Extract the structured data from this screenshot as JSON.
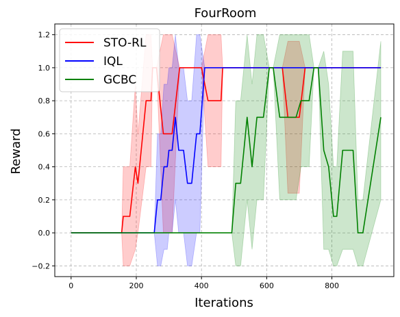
{
  "chart_data": {
    "type": "line",
    "title": "FourRoom",
    "xlabel": "Iterations",
    "ylabel": "Reward",
    "xlim": [
      -50,
      990
    ],
    "ylim": [
      -0.265,
      1.265
    ],
    "xticks": [
      0,
      200,
      400,
      600,
      800
    ],
    "yticks": [
      -0.2,
      0.0,
      0.2,
      0.4,
      0.6,
      0.8,
      1.0,
      1.2
    ],
    "grid": true,
    "legend_position": "upper-left",
    "series": [
      {
        "name": "STO-RL",
        "color": "#ff0000",
        "band_color": "#ff0000",
        "points": [
          {
            "x": 0,
            "y": 0.0,
            "lo": 0.0,
            "hi": 0.0
          },
          {
            "x": 155,
            "y": 0.0,
            "lo": 0.0,
            "hi": 0.0
          },
          {
            "x": 160,
            "y": 0.1,
            "lo": -0.2,
            "hi": 0.4
          },
          {
            "x": 180,
            "y": 0.1,
            "lo": -0.2,
            "hi": 0.4
          },
          {
            "x": 197,
            "y": 0.4,
            "lo": -0.1,
            "hi": 0.9
          },
          {
            "x": 205,
            "y": 0.3,
            "lo": 0.0,
            "hi": 0.6
          },
          {
            "x": 230,
            "y": 0.8,
            "lo": 0.4,
            "hi": 1.2
          },
          {
            "x": 245,
            "y": 0.8,
            "lo": 0.4,
            "hi": 1.2
          },
          {
            "x": 250,
            "y": 1.0,
            "lo": 1.0,
            "hi": 1.0
          },
          {
            "x": 262,
            "y": 1.0,
            "lo": 1.0,
            "hi": 1.0
          },
          {
            "x": 283,
            "y": 0.6,
            "lo": 0.0,
            "hi": 1.2
          },
          {
            "x": 310,
            "y": 0.6,
            "lo": 0.0,
            "hi": 1.2
          },
          {
            "x": 333,
            "y": 1.0,
            "lo": 1.0,
            "hi": 1.0
          },
          {
            "x": 400,
            "y": 1.0,
            "lo": 1.0,
            "hi": 1.0
          },
          {
            "x": 420,
            "y": 0.8,
            "lo": 0.4,
            "hi": 1.2
          },
          {
            "x": 460,
            "y": 0.8,
            "lo": 0.4,
            "hi": 1.2
          },
          {
            "x": 465,
            "y": 1.0,
            "lo": 1.0,
            "hi": 1.0
          },
          {
            "x": 648,
            "y": 1.0,
            "lo": 1.0,
            "hi": 1.0
          },
          {
            "x": 665,
            "y": 0.7,
            "lo": 0.24,
            "hi": 1.16
          },
          {
            "x": 700,
            "y": 0.7,
            "lo": 0.24,
            "hi": 1.16
          },
          {
            "x": 718,
            "y": 1.0,
            "lo": 1.0,
            "hi": 1.0
          },
          {
            "x": 950,
            "y": 1.0,
            "lo": 1.0,
            "hi": 1.0
          }
        ]
      },
      {
        "name": "IQL",
        "color": "#0000ff",
        "band_color": "#0000ff",
        "points": [
          {
            "x": 0,
            "y": 0.0,
            "lo": 0.0,
            "hi": 0.0
          },
          {
            "x": 255,
            "y": 0.0,
            "lo": 0.0,
            "hi": 0.0
          },
          {
            "x": 265,
            "y": 0.2,
            "lo": -0.2,
            "hi": 0.6
          },
          {
            "x": 275,
            "y": 0.2,
            "lo": -0.2,
            "hi": 0.6
          },
          {
            "x": 285,
            "y": 0.4,
            "lo": -0.1,
            "hi": 0.9
          },
          {
            "x": 295,
            "y": 0.4,
            "lo": -0.1,
            "hi": 0.9
          },
          {
            "x": 300,
            "y": 0.5,
            "lo": 0.0,
            "hi": 1.0
          },
          {
            "x": 310,
            "y": 0.5,
            "lo": 0.0,
            "hi": 1.0
          },
          {
            "x": 320,
            "y": 0.7,
            "lo": 0.2,
            "hi": 1.2
          },
          {
            "x": 330,
            "y": 0.5,
            "lo": 0.0,
            "hi": 1.0
          },
          {
            "x": 345,
            "y": 0.5,
            "lo": 0.0,
            "hi": 1.0
          },
          {
            "x": 357,
            "y": 0.3,
            "lo": -0.2,
            "hi": 0.8
          },
          {
            "x": 370,
            "y": 0.3,
            "lo": -0.2,
            "hi": 0.8
          },
          {
            "x": 385,
            "y": 0.6,
            "lo": 0.0,
            "hi": 1.2
          },
          {
            "x": 395,
            "y": 0.6,
            "lo": 0.0,
            "hi": 1.2
          },
          {
            "x": 410,
            "y": 1.0,
            "lo": 1.0,
            "hi": 1.0
          },
          {
            "x": 950,
            "y": 1.0,
            "lo": 1.0,
            "hi": 1.0
          }
        ]
      },
      {
        "name": "GCBC",
        "color": "#008000",
        "band_color": "#008000",
        "points": [
          {
            "x": 0,
            "y": 0.0,
            "lo": 0.0,
            "hi": 0.0
          },
          {
            "x": 493,
            "y": 0.0,
            "lo": 0.0,
            "hi": 0.0
          },
          {
            "x": 505,
            "y": 0.3,
            "lo": -0.2,
            "hi": 0.8
          },
          {
            "x": 520,
            "y": 0.3,
            "lo": -0.2,
            "hi": 0.8
          },
          {
            "x": 540,
            "y": 0.7,
            "lo": 0.2,
            "hi": 1.2
          },
          {
            "x": 555,
            "y": 0.4,
            "lo": -0.1,
            "hi": 0.9
          },
          {
            "x": 570,
            "y": 0.7,
            "lo": 0.2,
            "hi": 1.2
          },
          {
            "x": 590,
            "y": 0.7,
            "lo": 0.2,
            "hi": 1.2
          },
          {
            "x": 608,
            "y": 1.0,
            "lo": 1.0,
            "hi": 1.0
          },
          {
            "x": 620,
            "y": 1.0,
            "lo": 1.0,
            "hi": 1.0
          },
          {
            "x": 640,
            "y": 0.7,
            "lo": 0.2,
            "hi": 1.2
          },
          {
            "x": 690,
            "y": 0.7,
            "lo": 0.2,
            "hi": 1.2
          },
          {
            "x": 705,
            "y": 0.8,
            "lo": 0.4,
            "hi": 1.2
          },
          {
            "x": 730,
            "y": 0.8,
            "lo": 0.4,
            "hi": 1.2
          },
          {
            "x": 745,
            "y": 1.0,
            "lo": 1.0,
            "hi": 1.0
          },
          {
            "x": 758,
            "y": 1.0,
            "lo": 1.0,
            "hi": 1.0
          },
          {
            "x": 775,
            "y": 0.5,
            "lo": -0.1,
            "hi": 1.1
          },
          {
            "x": 790,
            "y": 0.4,
            "lo": -0.1,
            "hi": 0.9
          },
          {
            "x": 805,
            "y": 0.1,
            "lo": -0.2,
            "hi": 0.4
          },
          {
            "x": 815,
            "y": 0.1,
            "lo": -0.2,
            "hi": 0.4
          },
          {
            "x": 833,
            "y": 0.5,
            "lo": -0.1,
            "hi": 1.1
          },
          {
            "x": 865,
            "y": 0.5,
            "lo": -0.1,
            "hi": 1.1
          },
          {
            "x": 880,
            "y": 0.0,
            "lo": -0.2,
            "hi": 0.2
          },
          {
            "x": 895,
            "y": 0.0,
            "lo": -0.2,
            "hi": 0.2
          },
          {
            "x": 950,
            "y": 0.7,
            "lo": 0.2,
            "hi": 1.16
          }
        ]
      }
    ]
  }
}
